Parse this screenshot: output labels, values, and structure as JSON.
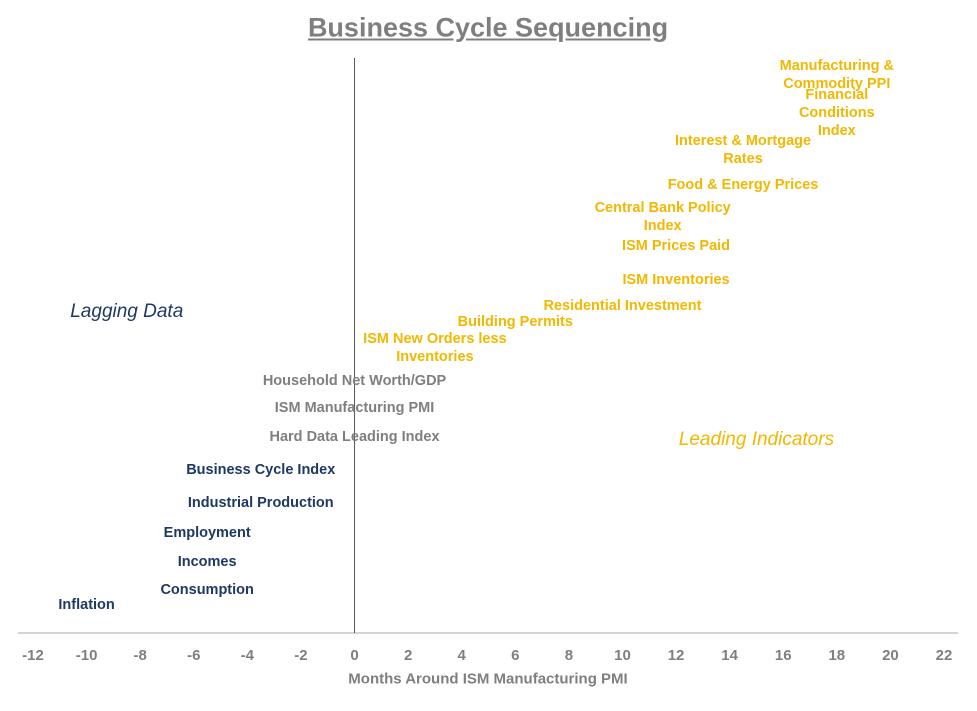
{
  "chart_data": {
    "type": "label-scatter",
    "title": "Business Cycle Sequencing",
    "x_label": "Months Around ISM Manufacturing PMI",
    "xlim": [
      -12,
      22
    ],
    "xticks": [
      -12,
      -10,
      -8,
      -6,
      -4,
      -2,
      0,
      2,
      4,
      6,
      8,
      10,
      12,
      14,
      16,
      18,
      20,
      22
    ],
    "annotations": [
      {
        "text": "Lagging Data",
        "x": -8.5,
        "color": "#1f3864"
      },
      {
        "text": "Leading Indicators",
        "x": 15,
        "color": "#f2b800"
      }
    ],
    "series": [
      {
        "color": "#f2b800",
        "labels": [
          "Manufacturing &\nCommodity PPI",
          "Financial Conditions\nIndex",
          "Interest & Mortgage\nRates",
          "Food & Energy Prices",
          "Central Bank Policy\nIndex",
          "ISM Prices Paid",
          "ISM Inventories",
          "Residential Investment",
          "Building Permits",
          "ISM New Orders less\nInventories"
        ],
        "x": [
          18,
          18,
          14.5,
          14.5,
          11.5,
          12,
          12,
          10,
          6,
          3
        ]
      },
      {
        "color": "#7f7f7f",
        "labels": [
          "Household Net Worth/GDP",
          "ISM Manufacturing PMI",
          "Hard Data Leading Index"
        ],
        "x": [
          0,
          0,
          0
        ]
      },
      {
        "color": "#1f3864",
        "labels": [
          "Business Cycle Index",
          "Industrial Production",
          "Employment",
          "Incomes",
          "Consumption",
          "Inflation"
        ],
        "x": [
          -3.5,
          -3.5,
          -5.5,
          -5.5,
          -5.5,
          -10
        ]
      }
    ]
  }
}
